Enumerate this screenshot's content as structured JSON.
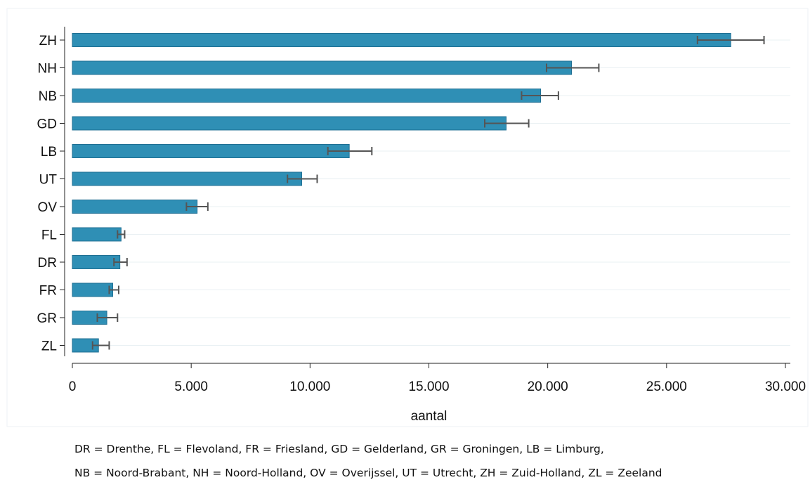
{
  "chart_data": {
    "type": "bar",
    "orientation": "horizontal",
    "categories": [
      "ZH",
      "NH",
      "NB",
      "GD",
      "LB",
      "UT",
      "OV",
      "FL",
      "DR",
      "FR",
      "GR",
      "ZL"
    ],
    "values": [
      27700,
      21000,
      19700,
      18250,
      11650,
      9650,
      5250,
      2050,
      2000,
      1700,
      1450,
      1100
    ],
    "error_low": [
      26300,
      19950,
      18900,
      17350,
      10750,
      9050,
      4800,
      1900,
      1750,
      1550,
      1050,
      850
    ],
    "error_high": [
      29100,
      22150,
      20450,
      19200,
      12600,
      10300,
      5700,
      2200,
      2300,
      1950,
      1900,
      1550
    ],
    "xlabel": "aantal",
    "ylabel": "",
    "xlim": [
      0,
      30000
    ],
    "xticks": [
      0,
      5000,
      10000,
      15000,
      20000,
      25000,
      30000
    ],
    "xtick_labels": [
      "0",
      "5.000",
      "10.000",
      "15.000",
      "20.000",
      "25.000",
      "30.000"
    ],
    "grid": "horizontal gridlines at each category",
    "colors": {
      "bar": "#2f8fb5",
      "bar_edge": "#1f6f93",
      "error_bar": "#555555",
      "grid": "#e9f0f3",
      "axis": "#222222"
    }
  },
  "footnote": {
    "line1": "DR = Drenthe, FL = Flevoland, FR = Friesland, GD = Gelderland, GR = Groningen, LB = Limburg,",
    "line2": "NB = Noord-Brabant, NH = Noord-Holland, OV = Overijssel, UT = Utrecht, ZH = Zuid-Holland, ZL = Zeeland"
  }
}
